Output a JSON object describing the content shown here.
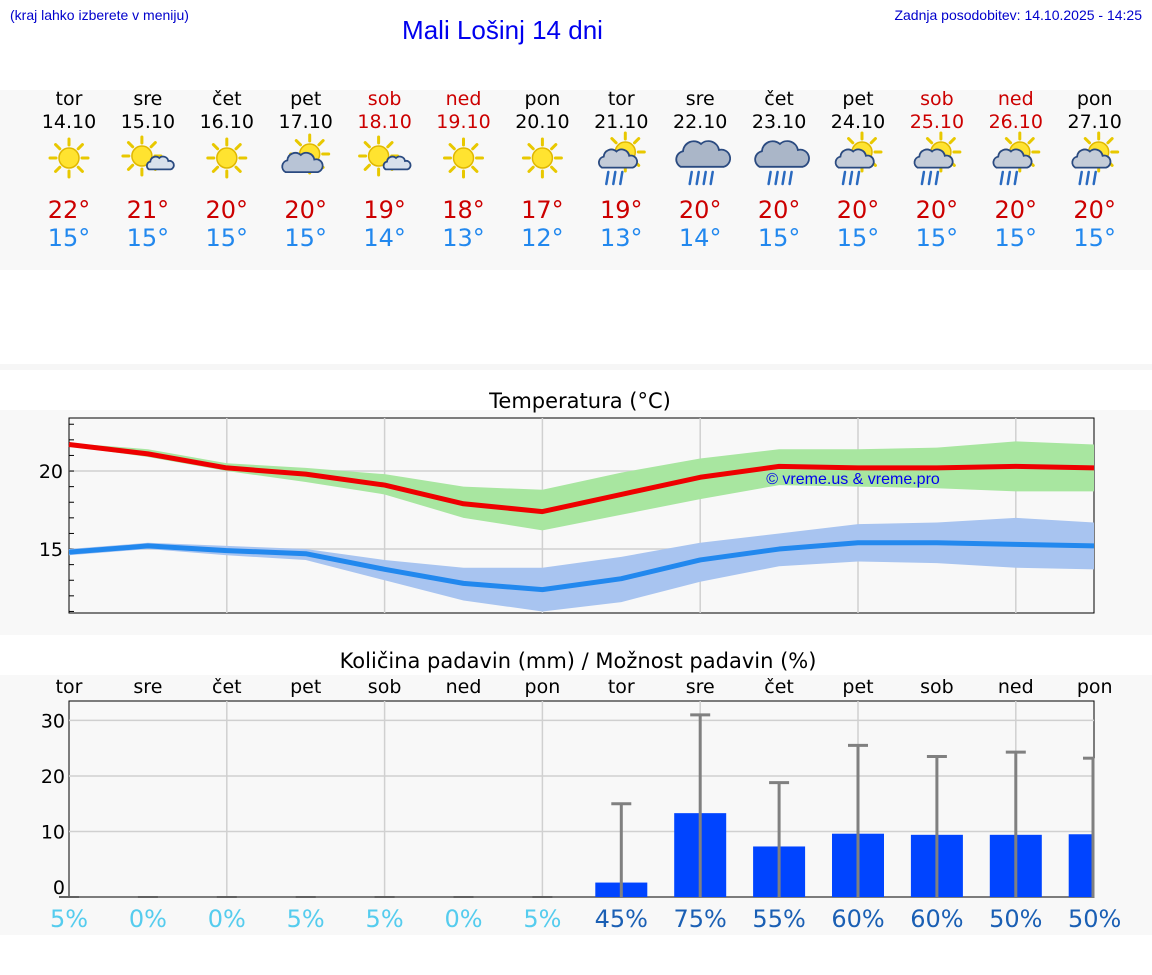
{
  "header": {
    "hint": "(kraj lahko izberete v meniju)",
    "title": "Mali Lošinj 14 dni",
    "updated": "Zadnja posodobitev: 14.10.2025 - 14:25"
  },
  "days": [
    {
      "name": "tor",
      "date": "14.10",
      "weekend": false,
      "icon": "sun-icon",
      "tmax": "22°",
      "tmin": "15°"
    },
    {
      "name": "sre",
      "date": "15.10",
      "weekend": false,
      "icon": "sun-cloud-icon",
      "tmax": "21°",
      "tmin": "15°"
    },
    {
      "name": "čet",
      "date": "16.10",
      "weekend": false,
      "icon": "sun-icon",
      "tmax": "20°",
      "tmin": "15°"
    },
    {
      "name": "pet",
      "date": "17.10",
      "weekend": false,
      "icon": "cloud-sun-icon",
      "tmax": "20°",
      "tmin": "15°"
    },
    {
      "name": "sob",
      "date": "18.10",
      "weekend": true,
      "icon": "sun-cloud-icon",
      "tmax": "19°",
      "tmin": "14°"
    },
    {
      "name": "ned",
      "date": "19.10",
      "weekend": true,
      "icon": "sun-icon",
      "tmax": "18°",
      "tmin": "13°"
    },
    {
      "name": "pon",
      "date": "20.10",
      "weekend": false,
      "icon": "sun-icon",
      "tmax": "17°",
      "tmin": "12°"
    },
    {
      "name": "tor",
      "date": "21.10",
      "weekend": false,
      "icon": "sun-cloud-rain-icon",
      "tmax": "19°",
      "tmin": "13°"
    },
    {
      "name": "sre",
      "date": "22.10",
      "weekend": false,
      "icon": "cloud-rain-icon",
      "tmax": "20°",
      "tmin": "14°"
    },
    {
      "name": "čet",
      "date": "23.10",
      "weekend": false,
      "icon": "cloud-rain-icon",
      "tmax": "20°",
      "tmin": "15°"
    },
    {
      "name": "pet",
      "date": "24.10",
      "weekend": false,
      "icon": "sun-cloud-rain-icon",
      "tmax": "20°",
      "tmin": "15°"
    },
    {
      "name": "sob",
      "date": "25.10",
      "weekend": true,
      "icon": "sun-cloud-rain-icon",
      "tmax": "20°",
      "tmin": "15°"
    },
    {
      "name": "ned",
      "date": "26.10",
      "weekend": true,
      "icon": "sun-cloud-rain-icon",
      "tmax": "20°",
      "tmin": "15°"
    },
    {
      "name": "pon",
      "date": "27.10",
      "weekend": false,
      "icon": "sun-cloud-rain-icon",
      "tmax": "20°",
      "tmin": "15°"
    }
  ],
  "colors": {
    "max_line": "#ee0000",
    "max_band": "#a8e6a0",
    "min_line": "#2288ee",
    "min_band": "#a8c4f0",
    "bar": "#0044ff",
    "whisker": "#808080",
    "prob_low": "#55ccee",
    "prob_high": "#1a5fb4"
  },
  "chart_data": [
    {
      "type": "line",
      "title": "Temperatura (°C)",
      "watermark": "© vreme.us & vreme.pro",
      "x": [
        0,
        1,
        2,
        3,
        4,
        5,
        6,
        7,
        8,
        9,
        10,
        11,
        12,
        13
      ],
      "yticks": [
        20,
        15
      ],
      "ylim": [
        10.9,
        23.4
      ],
      "series": [
        {
          "name": "max",
          "values": [
            21.7,
            21.1,
            20.2,
            19.8,
            19.1,
            17.9,
            17.4,
            18.5,
            19.6,
            20.3,
            20.2,
            20.2,
            20.3,
            20.2
          ],
          "band_low": [
            21.6,
            20.9,
            20.0,
            19.3,
            18.5,
            17.0,
            16.2,
            17.2,
            18.2,
            19.1,
            19.0,
            18.9,
            18.7,
            18.7
          ],
          "band_high": [
            21.8,
            21.4,
            20.5,
            20.2,
            19.8,
            19.0,
            18.8,
            19.9,
            20.8,
            21.4,
            21.4,
            21.5,
            21.9,
            21.7
          ]
        },
        {
          "name": "min",
          "values": [
            14.8,
            15.2,
            14.9,
            14.7,
            13.7,
            12.8,
            12.4,
            13.1,
            14.3,
            15.0,
            15.4,
            15.4,
            15.3,
            15.2
          ],
          "band_low": [
            14.6,
            15.0,
            14.6,
            14.3,
            13.0,
            11.7,
            11.0,
            11.6,
            12.9,
            13.9,
            14.2,
            14.1,
            13.8,
            13.7
          ],
          "band_high": [
            15.0,
            15.4,
            15.2,
            15.0,
            14.3,
            13.8,
            13.8,
            14.5,
            15.4,
            16.0,
            16.6,
            16.7,
            17.0,
            16.7
          ]
        }
      ]
    },
    {
      "type": "bar",
      "title": "Količina padavin (mm) / Možnost padavin (%)",
      "categories": [
        "tor",
        "sre",
        "čet",
        "pet",
        "sob",
        "ned",
        "pon",
        "tor",
        "sre",
        "čet",
        "pet",
        "sob",
        "ned",
        "pon"
      ],
      "values": [
        0,
        0,
        0,
        0,
        0,
        0,
        0,
        0.8,
        13.3,
        7.3,
        9.6,
        9.4,
        9.4,
        9.5
      ],
      "whisker_high": [
        0,
        0,
        0,
        0,
        0,
        0,
        0,
        15.0,
        31.0,
        18.8,
        25.5,
        23.5,
        24.3,
        23.2
      ],
      "probabilities": [
        "5%",
        "0%",
        "0%",
        "5%",
        "5%",
        "0%",
        "5%",
        "45%",
        "75%",
        "55%",
        "60%",
        "60%",
        "50%",
        "50%"
      ],
      "yticks": [
        30,
        20,
        10,
        0
      ],
      "ylim": [
        -1.8,
        33.5
      ]
    }
  ]
}
